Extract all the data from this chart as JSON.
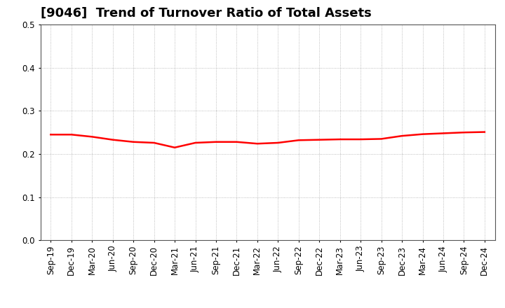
{
  "title": "[9046]  Trend of Turnover Ratio of Total Assets",
  "labels": [
    "Sep-19",
    "Dec-19",
    "Mar-20",
    "Jun-20",
    "Sep-20",
    "Dec-20",
    "Mar-21",
    "Jun-21",
    "Sep-21",
    "Dec-21",
    "Mar-22",
    "Jun-22",
    "Sep-22",
    "Dec-22",
    "Mar-23",
    "Jun-23",
    "Sep-23",
    "Dec-23",
    "Mar-24",
    "Jun-24",
    "Sep-24",
    "Dec-24"
  ],
  "values": [
    0.245,
    0.245,
    0.24,
    0.233,
    0.228,
    0.226,
    0.215,
    0.226,
    0.228,
    0.228,
    0.224,
    0.226,
    0.232,
    0.233,
    0.234,
    0.234,
    0.235,
    0.242,
    0.246,
    0.248,
    0.25,
    0.251
  ],
  "line_color": "#FF0000",
  "line_width": 1.8,
  "ylim": [
    0.0,
    0.5
  ],
  "yticks": [
    0.0,
    0.1,
    0.2,
    0.3,
    0.4,
    0.5
  ],
  "grid_color": "#aaaaaa",
  "background_color": "#ffffff",
  "title_fontsize": 13,
  "tick_fontsize": 8.5,
  "spine_color": "#555555"
}
